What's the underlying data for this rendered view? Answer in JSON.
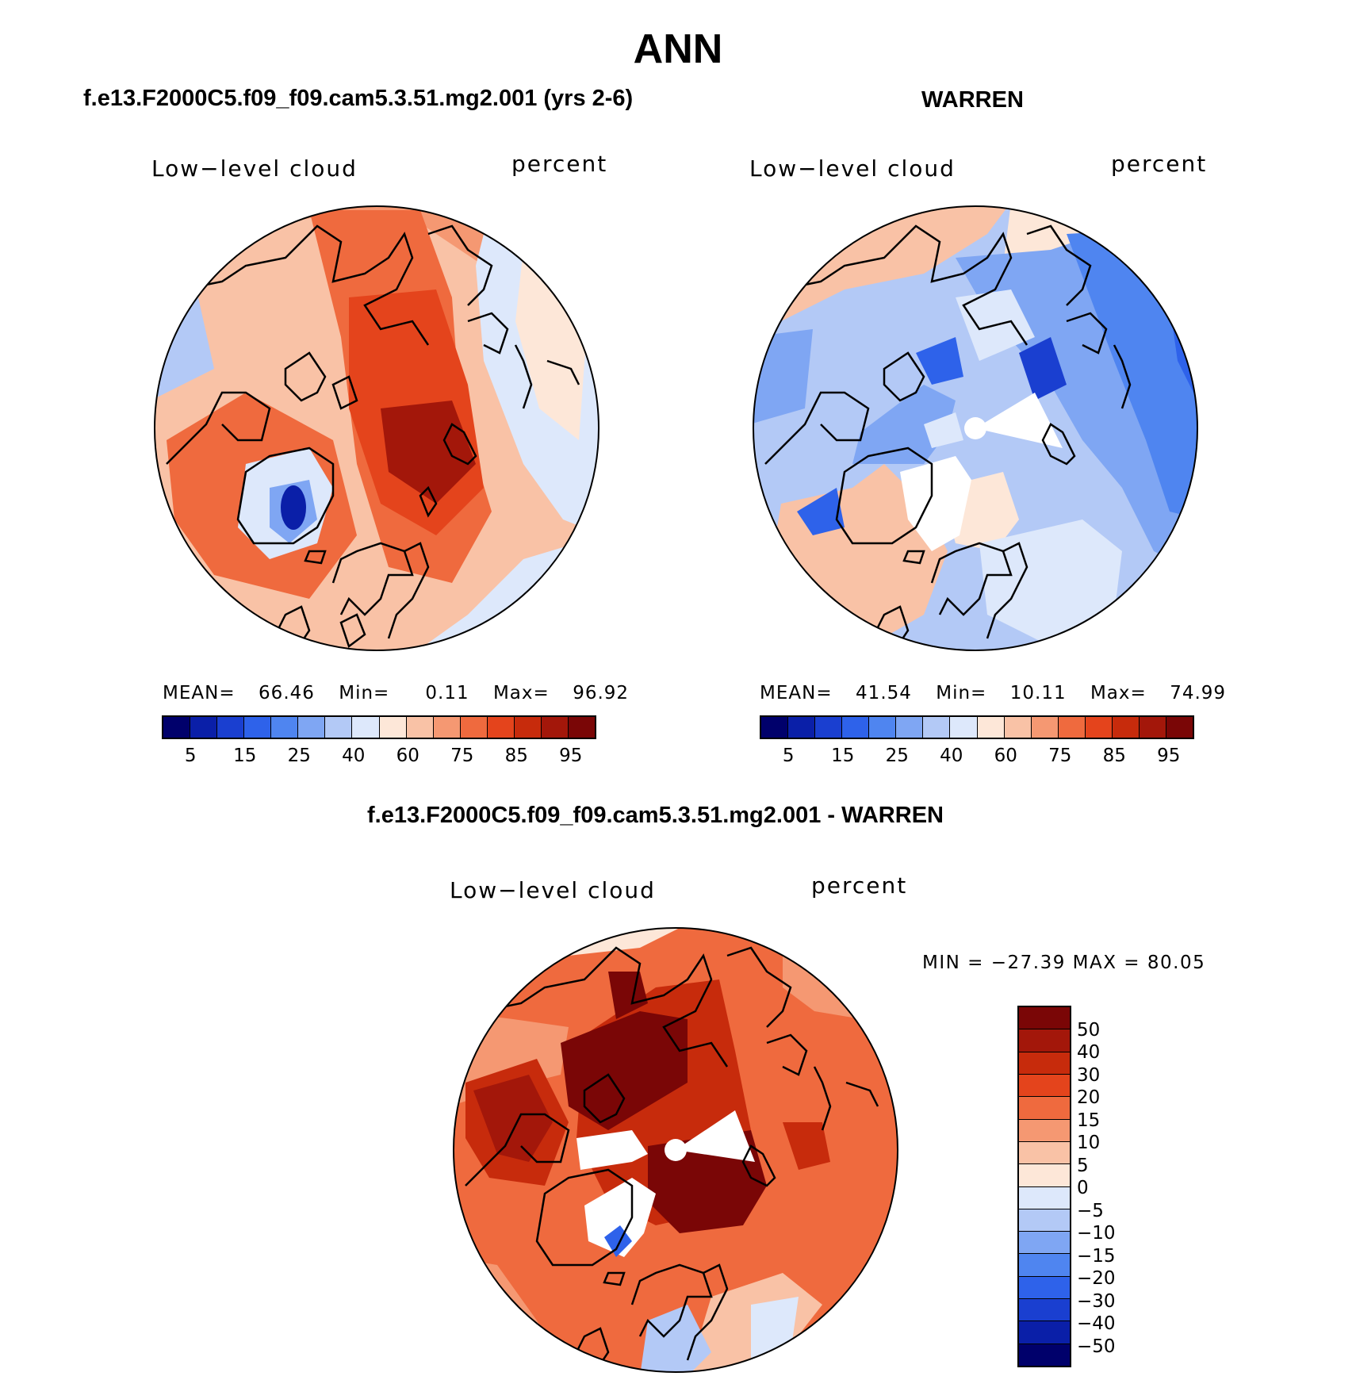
{
  "title": "ANN",
  "panels": [
    {
      "title": "f.e13.F2000C5.f09_f09.cam5.3.51.mg2.001 (yrs 2-6)",
      "variable": "Low−level cloud",
      "units": "percent",
      "mean_label": "MEAN=",
      "mean": "66.46",
      "min_label": "Min=",
      "min": "0.11",
      "max_label": "Max=",
      "max": "96.92"
    },
    {
      "title": "WARREN",
      "variable": "Low−level cloud",
      "units": "percent",
      "mean_label": "MEAN=",
      "mean": "41.54",
      "min_label": "Min=",
      "min": "10.11",
      "max_label": "Max=",
      "max": "74.99"
    },
    {
      "title": "f.e13.F2000C5.f09_f09.cam5.3.51.mg2.001 - WARREN",
      "variable": "Low−level cloud",
      "units": "percent",
      "minmax_text": "MIN = −27.39 MAX =   80.05"
    }
  ],
  "colorbar_abs": {
    "colors": [
      "#00006b",
      "#0a1fa8",
      "#1a3fd0",
      "#2e62ea",
      "#4f85f0",
      "#7fa6f3",
      "#b3c9f6",
      "#dde8fb",
      "#fde7d8",
      "#f9c2a6",
      "#f59872",
      "#ef6a3e",
      "#e4441c",
      "#c72b0c",
      "#a3170a",
      "#7a0606"
    ],
    "labels": [
      "5",
      "15",
      "25",
      "40",
      "60",
      "75",
      "85",
      "95"
    ]
  },
  "colorbar_diff": {
    "colors": [
      "#00006b",
      "#0a1fa8",
      "#1a3fd0",
      "#2e62ea",
      "#4f85f0",
      "#7fa6f3",
      "#b3c9f6",
      "#dde8fb",
      "#fde7d8",
      "#f9c2a6",
      "#f59872",
      "#ef6a3e",
      "#e4441c",
      "#c72b0c",
      "#a3170a",
      "#7a0606"
    ],
    "labels": [
      "−50",
      "−40",
      "−30",
      "−20",
      "−15",
      "−10",
      "−5",
      "0",
      "5",
      "10",
      "15",
      "20",
      "30",
      "40",
      "50"
    ]
  }
}
